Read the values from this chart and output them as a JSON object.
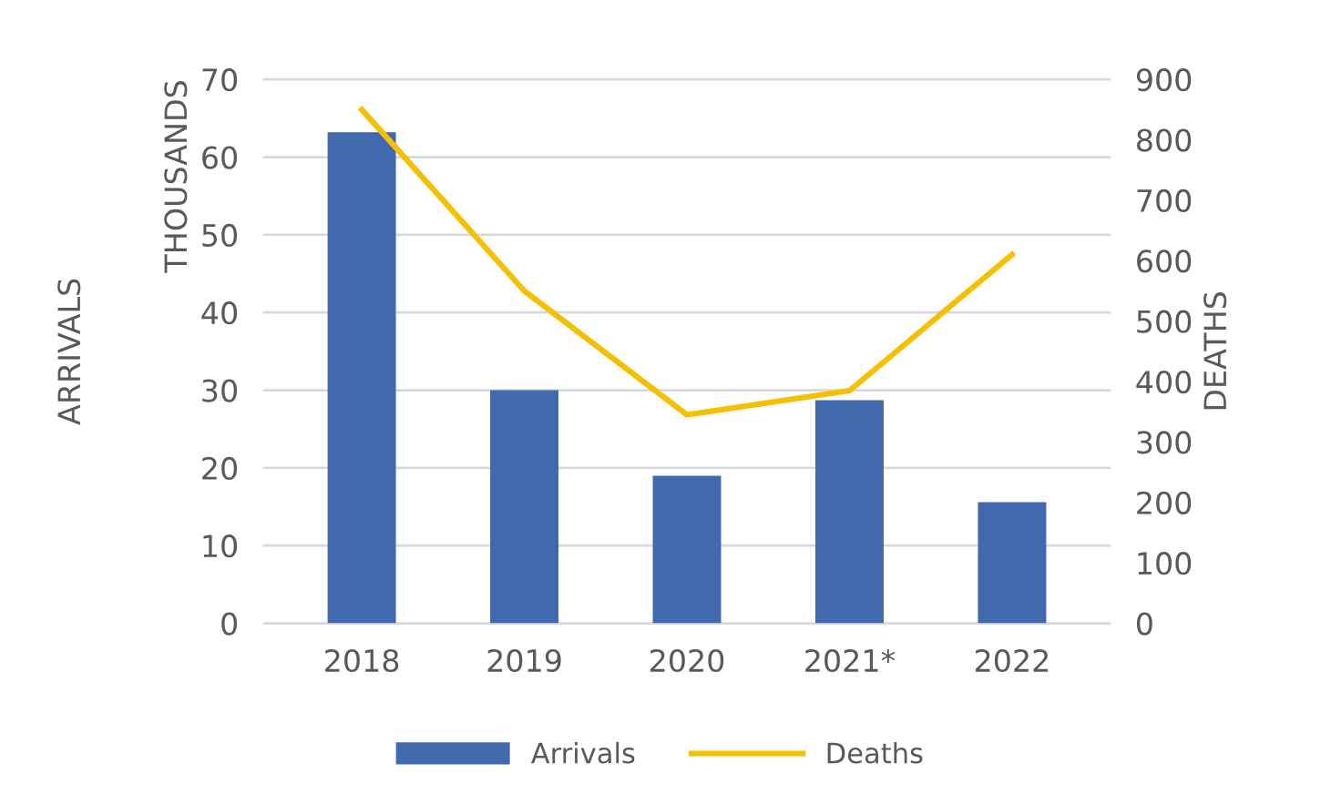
{
  "chart_data": {
    "type": "bar",
    "categories": [
      "2018",
      "2019",
      "2020",
      "2021*",
      "2022"
    ],
    "series": [
      {
        "name": "Arrivals",
        "color": "#4169ae",
        "values": [
          63.2,
          30,
          19,
          28.7,
          15.6
        ]
      },
      {
        "name": "Deaths",
        "type": "line",
        "axis": "y2",
        "color": "#f5c000",
        "values": [
          850,
          550,
          345,
          385,
          610
        ]
      }
    ],
    "ylabel": "ARRIVALS",
    "annotations": [
      "THOUSANDS"
    ],
    "y2label": "DEATHS",
    "ylim": [
      0,
      70
    ],
    "yticks": [
      0,
      10,
      20,
      30,
      40,
      50,
      60,
      70
    ],
    "y2lim": [
      0,
      900
    ],
    "y2ticks": [
      0,
      100,
      200,
      300,
      400,
      500,
      600,
      700,
      800,
      900
    ],
    "grid": "y",
    "legend": "bottom",
    "marker": "none",
    "line_style": "solid"
  }
}
